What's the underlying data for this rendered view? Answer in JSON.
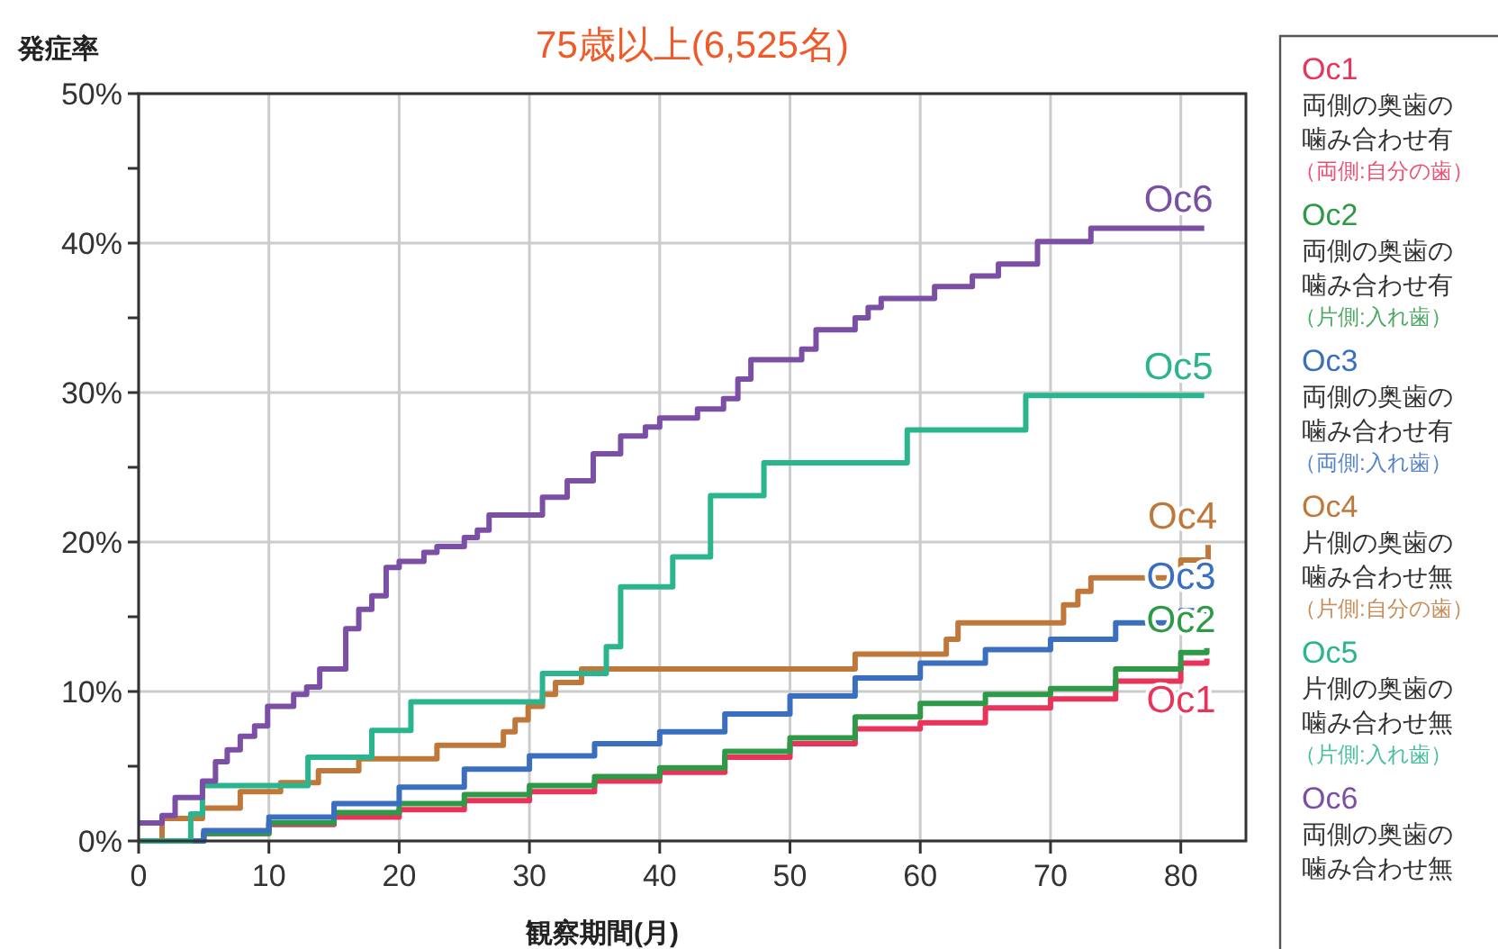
{
  "chart_data": {
    "type": "step",
    "title": "75歳以上(6,525名)",
    "ylabel": "発症率",
    "xlabel": "観察期間(月)",
    "xlim": [
      0,
      85
    ],
    "xticks": [
      0,
      10,
      20,
      30,
      40,
      50,
      60,
      70,
      80
    ],
    "ylim": [
      0,
      50
    ],
    "yticks": [
      {
        "value": 0,
        "label": "0%"
      },
      {
        "value": 5,
        "label": null
      },
      {
        "value": 10,
        "label": "10%"
      },
      {
        "value": 15,
        "label": null
      },
      {
        "value": 20,
        "label": "20%"
      },
      {
        "value": 25,
        "label": null
      },
      {
        "value": 30,
        "label": "30%"
      },
      {
        "value": 35,
        "label": null
      },
      {
        "value": 40,
        "label": "40%"
      },
      {
        "value": 45,
        "label": null
      },
      {
        "value": 50,
        "label": "50%"
      }
    ],
    "grid": true,
    "legend": "right",
    "line_style": "solid",
    "series": [
      {
        "name": "Oc1",
        "color": "#e8345a",
        "x": [
          0,
          5,
          10,
          15,
          20,
          25,
          30,
          35,
          40,
          45,
          50,
          55,
          60,
          65,
          70,
          75,
          80,
          82
        ],
        "values": [
          0,
          0.5,
          1.1,
          1.6,
          2.1,
          2.7,
          3.3,
          4.0,
          4.6,
          5.6,
          6.5,
          7.5,
          7.9,
          8.9,
          9.5,
          10.7,
          11.9,
          12.2
        ]
      },
      {
        "name": "Oc2",
        "color": "#2e9a48",
        "x": [
          0,
          5,
          10,
          15,
          20,
          25,
          30,
          35,
          40,
          45,
          50,
          55,
          60,
          65,
          70,
          75,
          80,
          82
        ],
        "values": [
          0,
          0.5,
          1.2,
          1.9,
          2.5,
          3.1,
          3.7,
          4.3,
          4.9,
          6.0,
          6.9,
          8.3,
          9.2,
          9.8,
          10.2,
          11.5,
          12.6,
          12.9
        ]
      },
      {
        "name": "Oc3",
        "color": "#3a6fc0",
        "x": [
          0,
          5,
          10,
          15,
          20,
          25,
          30,
          35,
          40,
          45,
          50,
          55,
          60,
          65,
          70,
          75,
          80,
          82
        ],
        "values": [
          0,
          0.7,
          1.6,
          2.5,
          3.6,
          4.8,
          5.7,
          6.5,
          7.3,
          8.5,
          9.7,
          10.9,
          11.9,
          12.8,
          13.5,
          14.6,
          15.4,
          15.8
        ]
      },
      {
        "name": "Oc4",
        "color": "#c0783a",
        "x": [
          0,
          1.8,
          4.9,
          7.8,
          10.9,
          13.8,
          16.9,
          22.9,
          28.0,
          28.9,
          29.9,
          31.0,
          32.0,
          34.0,
          55.0,
          62.0,
          62.9,
          71.0,
          72.1,
          73.1,
          80.0,
          82.1
        ],
        "values": [
          0,
          1.5,
          2.2,
          3.3,
          3.9,
          4.7,
          5.5,
          6.4,
          7.3,
          8.1,
          9.0,
          9.8,
          10.6,
          11.5,
          12.5,
          13.5,
          14.6,
          15.8,
          16.7,
          17.6,
          18.8,
          19.8
        ]
      },
      {
        "name": "Oc5",
        "color": "#2bb58e",
        "x": [
          0,
          4.0,
          4.9,
          13.0,
          17.9,
          20.9,
          31.0,
          35.9,
          37.0,
          41.0,
          43.9,
          48.0,
          59.0,
          68.1,
          81.8
        ],
        "values": [
          0,
          1.8,
          3.7,
          5.6,
          7.4,
          9.3,
          11.2,
          13.0,
          17.0,
          19.0,
          23.1,
          25.3,
          27.5,
          29.8,
          29.8
        ]
      },
      {
        "name": "Oc6",
        "color": "#7a4fa5",
        "x": [
          0,
          1.8,
          2.8,
          4.9,
          5.9,
          6.8,
          7.8,
          8.9,
          9.9,
          11.9,
          12.9,
          13.9,
          15.9,
          16.9,
          17.9,
          19.0,
          20.0,
          21.9,
          22.9,
          25.0,
          26.0,
          26.9,
          31.0,
          32.9,
          34.9,
          37.0,
          38.9,
          40.0,
          42.9,
          44.9,
          46.0,
          47.0,
          50.9,
          52.0,
          55.0,
          56.0,
          57.0,
          61.1,
          64.0,
          66.0,
          69.0,
          73.1,
          81.8
        ],
        "values": [
          1.2,
          1.7,
          2.9,
          4.0,
          5.3,
          6.1,
          7.0,
          7.7,
          9.0,
          9.8,
          10.3,
          11.5,
          14.2,
          15.5,
          16.4,
          18.3,
          18.7,
          19.3,
          19.7,
          20.3,
          20.8,
          21.8,
          23.0,
          24.1,
          25.9,
          27.1,
          27.7,
          28.3,
          28.9,
          29.6,
          30.9,
          32.2,
          32.9,
          34.2,
          35.0,
          35.7,
          36.3,
          37.1,
          37.8,
          38.6,
          40.1,
          41.0,
          41.0
        ]
      }
    ],
    "annotations": [
      "両側の奥歯の噛み合わせ有",
      "（両側:自分の歯）",
      "両側の奥歯の噛み合わせ有",
      "（片側:入れ歯）",
      "両側の奥歯の噛み合わせ有",
      "（両側:入れ歯）",
      "片側の奥歯の噛み合わせ無",
      "（片側:自分の歯）",
      "片側の奥歯の噛み合わせ無",
      "（片側:入れ歯）",
      "両側の奥歯の噛み合わせ無"
    ]
  }
}
